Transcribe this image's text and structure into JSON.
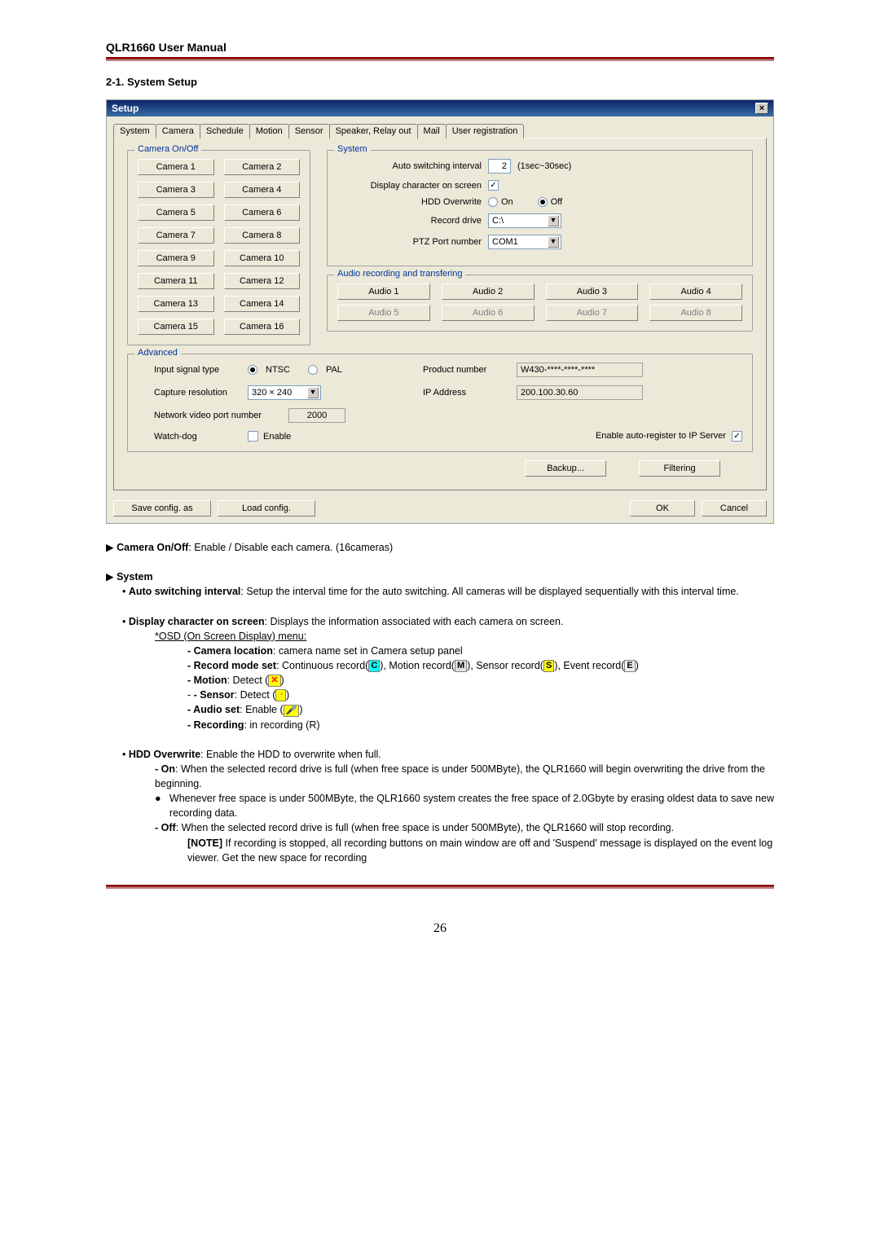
{
  "header": {
    "manual_title": "QLR1660 User Manual",
    "section_title": "2-1. System Setup"
  },
  "dialog": {
    "title": "Setup",
    "tabs": [
      "System",
      "Camera",
      "Schedule",
      "Motion",
      "Sensor",
      "Speaker, Relay out",
      "Mail",
      "User registration"
    ],
    "active_tab_index": 0,
    "camera_group": {
      "legend": "Camera On/Off",
      "buttons": [
        "Camera 1",
        "Camera 2",
        "Camera 3",
        "Camera 4",
        "Camera 5",
        "Camera 6",
        "Camera 7",
        "Camera 8",
        "Camera 9",
        "Camera 10",
        "Camera 11",
        "Camera 12",
        "Camera 13",
        "Camera 14",
        "Camera 15",
        "Camera 16"
      ]
    },
    "system_group": {
      "legend": "System",
      "auto_switch_label": "Auto switching interval",
      "auto_switch_value": "2",
      "auto_switch_hint": "(1sec~30sec)",
      "display_char_label": "Display character on screen",
      "display_char_checked": true,
      "hdd_label": "HDD Overwrite",
      "hdd_on": "On",
      "hdd_off": "Off",
      "hdd_selected": "Off",
      "record_drive_label": "Record drive",
      "record_drive_value": "C:\\",
      "ptz_label": "PTZ Port number",
      "ptz_value": "COM1"
    },
    "audio_group": {
      "legend": "Audio recording and transfering",
      "buttons": [
        {
          "label": "Audio 1",
          "enabled": true
        },
        {
          "label": "Audio 2",
          "enabled": true
        },
        {
          "label": "Audio 3",
          "enabled": true
        },
        {
          "label": "Audio 4",
          "enabled": true
        },
        {
          "label": "Audio 5",
          "enabled": false
        },
        {
          "label": "Audio 6",
          "enabled": false
        },
        {
          "label": "Audio 7",
          "enabled": false
        },
        {
          "label": "Audio 8",
          "enabled": false
        }
      ]
    },
    "advanced_group": {
      "legend": "Advanced",
      "input_signal_label": "Input signal type",
      "ntsc": "NTSC",
      "pal": "PAL",
      "signal_selected": "NTSC",
      "product_label": "Product number",
      "product_value": "W430-****-****-****",
      "capture_label": "Capture resolution",
      "capture_value": "320 × 240",
      "ip_label": "IP Address",
      "ip_value": "200.100.30.60",
      "port_label": "Network video port number",
      "port_value": "2000",
      "watchdog_label": "Watch-dog",
      "watchdog_enable": "Enable",
      "autoreg_label": "Enable auto-register to IP Server",
      "autoreg_checked": true
    },
    "buttons": {
      "backup": "Backup...",
      "filtering": "Filtering",
      "save": "Save config. as",
      "load": "Load config.",
      "ok": "OK",
      "cancel": "Cancel"
    }
  },
  "doc": {
    "camera_onoff": "Camera On/Off",
    "camera_onoff_desc": ": Enable / Disable each camera. (16cameras)",
    "system": "System",
    "auto_switch_b": "Auto switching interval",
    "auto_switch_t": ": Setup the interval time for the auto switching. All cameras will be displayed sequentially with this interval time.",
    "display_char_b": "Display character on screen",
    "display_char_t": ": Displays the information associated with each camera on screen.",
    "osd": "*OSD (On Screen Display) menu:",
    "cam_loc": "- Camera location",
    "cam_loc_t": ": camera name set in Camera setup panel",
    "rec_mode": "- Record mode set",
    "rec_mode_t1": ": Continuous record(",
    "rec_mode_t2": "), Motion record(",
    "rec_mode_t3": "), Sensor record(",
    "rec_mode_t4": "), Event record(",
    "rec_mode_t5": ")",
    "motion": "- Motion",
    "motion_t": ": Detect (",
    "sensor": "- Sensor",
    "sensor_t": ": Detect (",
    "audio_set": "- Audio set",
    "audio_set_t": ": Enable (",
    "recording": "- Recording",
    "recording_t": ": in recording (R)",
    "hdd_b": "HDD Overwrite",
    "hdd_t": ": Enable the HDD to overwrite when full.",
    "on_b": "- On",
    "on_t": ": When the selected record drive is full (when free space is under 500MByte), the QLR1660 will begin overwriting the drive from the beginning.",
    "bullet_t": "Whenever free space is under 500MByte, the QLR1660 system creates the free space of 2.0Gbyte by erasing oldest data to save new recording data.",
    "off_b": "- Off",
    "off_t": ": When the selected record drive is full (when free space is under 500MByte), the QLR1660 will stop recording.",
    "note_b": "[NOTE]",
    "note_t": " If recording is stopped, all recording buttons on main window are off and 'Suspend' message is displayed on the event log viewer. Get the new space for recording"
  },
  "page_number": "26"
}
